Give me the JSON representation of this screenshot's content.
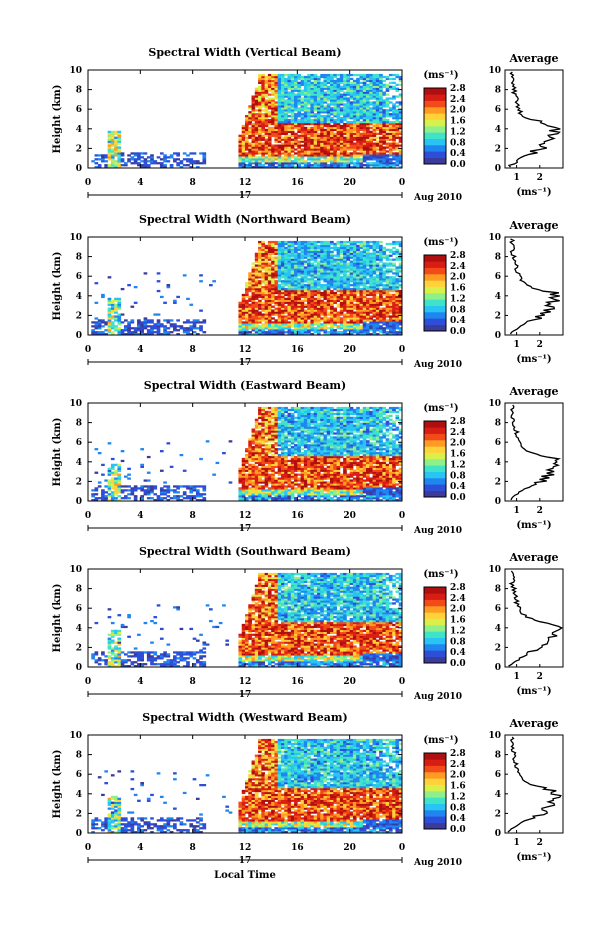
{
  "chart_data": {
    "type": "heatmap",
    "colors": [
      "#3b3b9b",
      "#2c4ed8",
      "#1f86f0",
      "#27c4f4",
      "#3fe3c8",
      "#8ff08a",
      "#d9f04a",
      "#ffd23a",
      "#ff9a22",
      "#f24a18",
      "#d81e14",
      "#b00f10"
    ],
    "xlabel": "Local Time",
    "date_label": "Aug 2010",
    "day_label": "17",
    "xticks": [
      "0",
      "4",
      "8",
      "12",
      "16",
      "20",
      "0"
    ],
    "xlim": [
      0,
      24
    ],
    "ylabel": "Height (km)",
    "yticks": [
      "0",
      "2",
      "4",
      "6",
      "8",
      "10"
    ],
    "ylim": [
      0,
      10
    ],
    "colorbar_label": "(ms⁻¹)",
    "colorbar_ticks": [
      "0.0",
      "0.4",
      "0.8",
      "1.2",
      "1.6",
      "2.0",
      "2.4",
      "2.8"
    ],
    "profile_title": "Average",
    "profile_xlabel": "(ms⁻¹)",
    "profile_xticks": [
      "1",
      "2"
    ],
    "panels": [
      {
        "title": "Spectral Width (Vertical Beam)"
      },
      {
        "title": "Spectral Width (Northward Beam)"
      },
      {
        "title": "Spectral Width (Eastward Beam)"
      },
      {
        "title": "Spectral Width (Southward Beam)"
      },
      {
        "title": "Spectral Width (Westward Beam)"
      }
    ],
    "average_profile": {
      "height_km": [
        0.2,
        0.5,
        1.0,
        1.5,
        2.0,
        2.5,
        3.0,
        3.5,
        4.0,
        4.3,
        4.6,
        5.0,
        5.5,
        6.0,
        6.5,
        7.0,
        7.5,
        8.0,
        8.5,
        9.0,
        9.5
      ],
      "width_ms": [
        0.7,
        0.9,
        1.2,
        1.6,
        2.1,
        2.3,
        2.5,
        2.6,
        2.7,
        2.6,
        2.2,
        1.5,
        1.2,
        1.1,
        1.0,
        1.0,
        0.9,
        0.9,
        0.8,
        0.9,
        0.8
      ]
    }
  }
}
